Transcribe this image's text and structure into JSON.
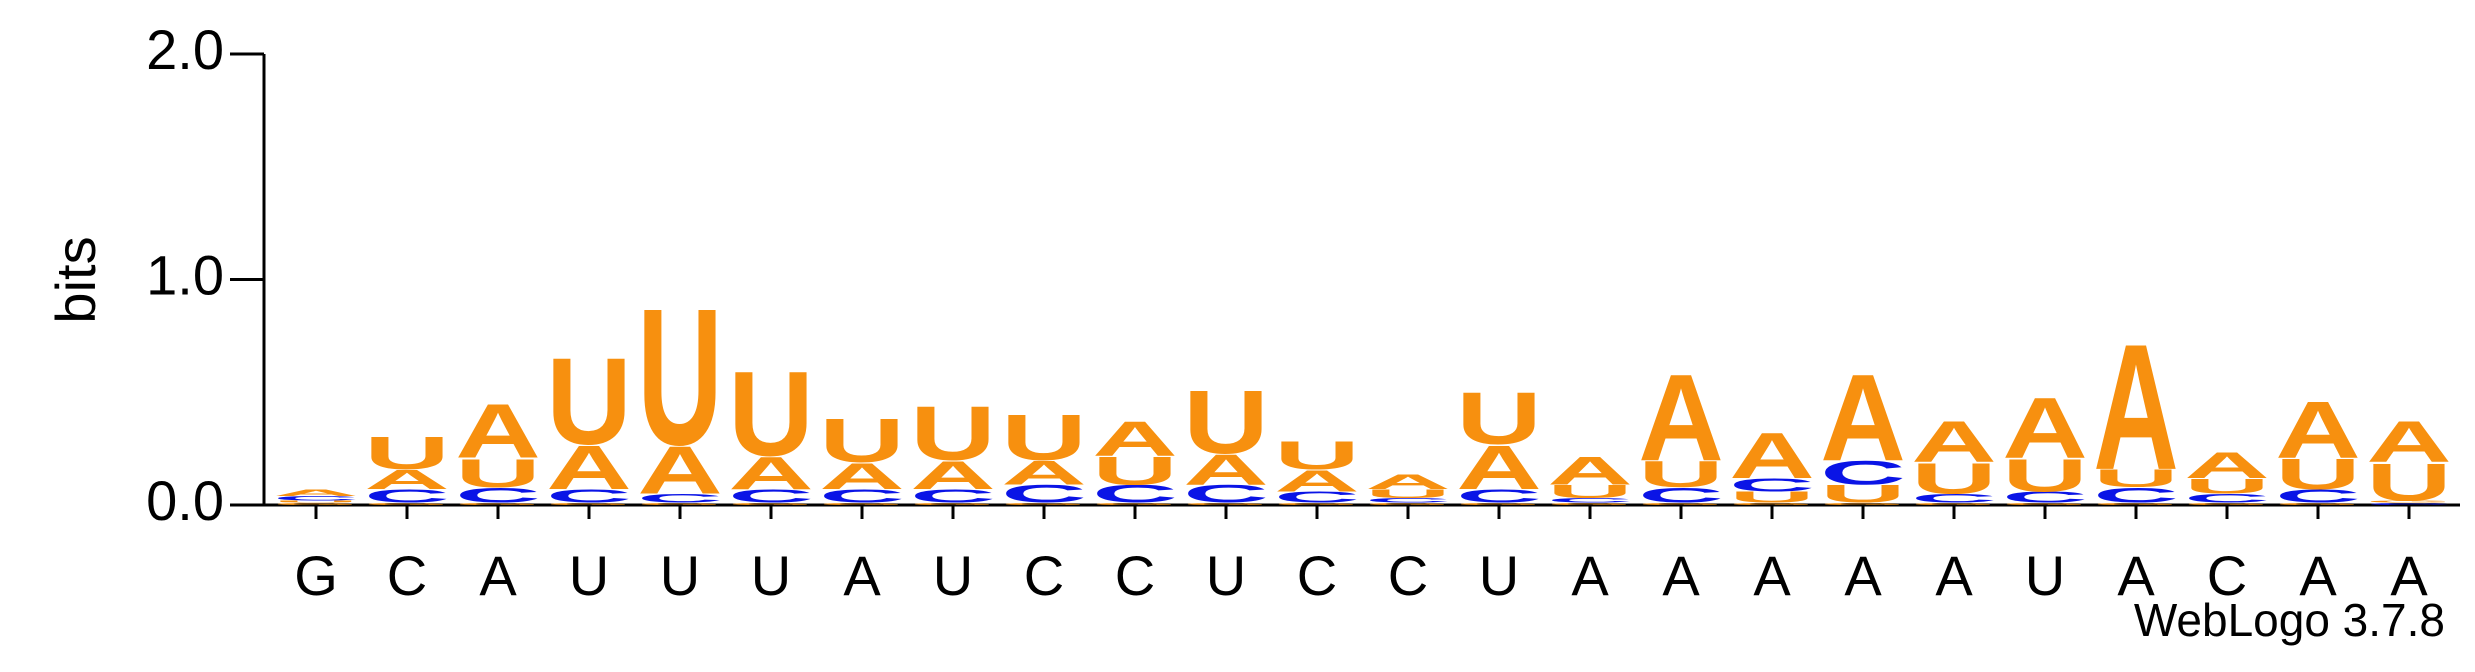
{
  "chart_data": {
    "type": "logo",
    "ylabel": "bits",
    "footer": "WebLogo 3.7.8",
    "categories": [
      "G",
      "C",
      "A",
      "U",
      "U",
      "U",
      "A",
      "U",
      "C",
      "C",
      "U",
      "C",
      "C",
      "U",
      "A",
      "A",
      "A",
      "A",
      "A",
      "U",
      "A",
      "C",
      "A",
      "A"
    ],
    "ylim": [
      0,
      2
    ],
    "yticks": [
      {
        "value": 0,
        "label": "0.0"
      },
      {
        "value": 1,
        "label": "1.0"
      },
      {
        "value": 2,
        "label": "2.0"
      }
    ],
    "series": [
      {
        "name": "A",
        "color": "#f7900f",
        "values": [
          0.03,
          0.09,
          0.25,
          0.2,
          0.22,
          0.15,
          0.12,
          0.13,
          0.11,
          0.16,
          0.14,
          0.1,
          0.07,
          0.2,
          0.13,
          0.4,
          0.21,
          0.4,
          0.19,
          0.28,
          0.58,
          0.12,
          0.26,
          0.19
        ]
      },
      {
        "name": "C",
        "color": "#0a14e6",
        "values": [
          0.02,
          0.06,
          0.07,
          0.06,
          0.04,
          0.06,
          0.06,
          0.06,
          0.08,
          0.08,
          0.08,
          0.05,
          0.02,
          0.06,
          0.02,
          0.07,
          0.06,
          0.11,
          0.04,
          0.05,
          0.07,
          0.04,
          0.06,
          0.01
        ]
      },
      {
        "name": "G",
        "color": "#f7900f",
        "values": [
          0.01,
          0.01,
          0.01,
          0.01,
          0.01,
          0.01,
          0.01,
          0.01,
          0.01,
          0.01,
          0.01,
          0.01,
          0.01,
          0.01,
          0.01,
          0.01,
          0.01,
          0.01,
          0.01,
          0.01,
          0.01,
          0.01,
          0.01,
          0.01
        ]
      },
      {
        "name": "U",
        "color": "#f7900f",
        "values": [
          0.01,
          0.15,
          0.13,
          0.4,
          0.63,
          0.39,
          0.2,
          0.25,
          0.21,
          0.13,
          0.29,
          0.13,
          0.04,
          0.24,
          0.06,
          0.12,
          0.05,
          0.08,
          0.14,
          0.15,
          0.08,
          0.07,
          0.14,
          0.17
        ]
      }
    ]
  }
}
